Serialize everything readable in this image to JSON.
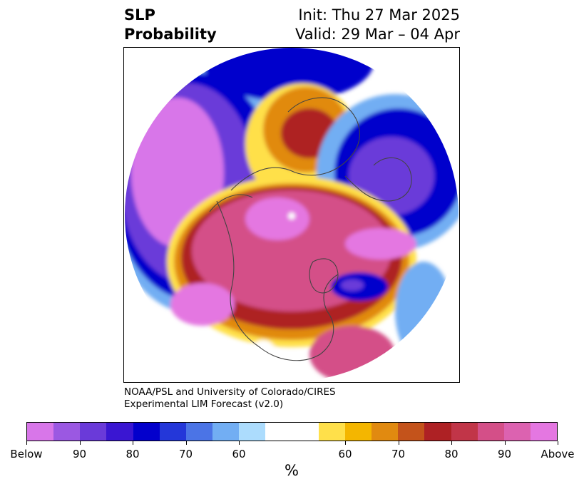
{
  "header": {
    "title_line1": "SLP",
    "title_line2": "Probability",
    "init_text": "Init: Thu 27 Mar 2025",
    "valid_text": "Valid: 29 Mar – 04 Apr"
  },
  "credit": {
    "line1": "NOAA/PSL and University of Colorado/CIRES",
    "line2": "Experimental LIM Forecast (v2.0)"
  },
  "colorbar": {
    "colors": [
      "#d876e9",
      "#9b58e2",
      "#6a3ad9",
      "#3a16d2",
      "#0300cc",
      "#2437d9",
      "#4b74e6",
      "#72aef3",
      "#acdcfd",
      "#ffffff",
      "#ffffff",
      "#ffe04a",
      "#f4b600",
      "#e18a10",
      "#c4531b",
      "#ae2124",
      "#c13548",
      "#d44f88",
      "#dc62b0",
      "#e477e1"
    ],
    "tick_labels": [
      "Below",
      "90",
      "80",
      "70",
      "60",
      "60",
      "70",
      "80",
      "90",
      "Above"
    ],
    "unit_label": "%"
  },
  "map_colors": {
    "below_deep": "#d876e9",
    "below_mid": "#6a3ad9",
    "below_strong": "#0300cc",
    "below_weak": "#72aef3",
    "below_faint": "#acdcfd",
    "neutral": "#ffffff",
    "above_faint": "#ffe04a",
    "above_weak": "#e18a10",
    "above_mid": "#ae2124",
    "above_strong": "#d44f88",
    "above_deep": "#e477e1",
    "coastline": "#444444"
  }
}
